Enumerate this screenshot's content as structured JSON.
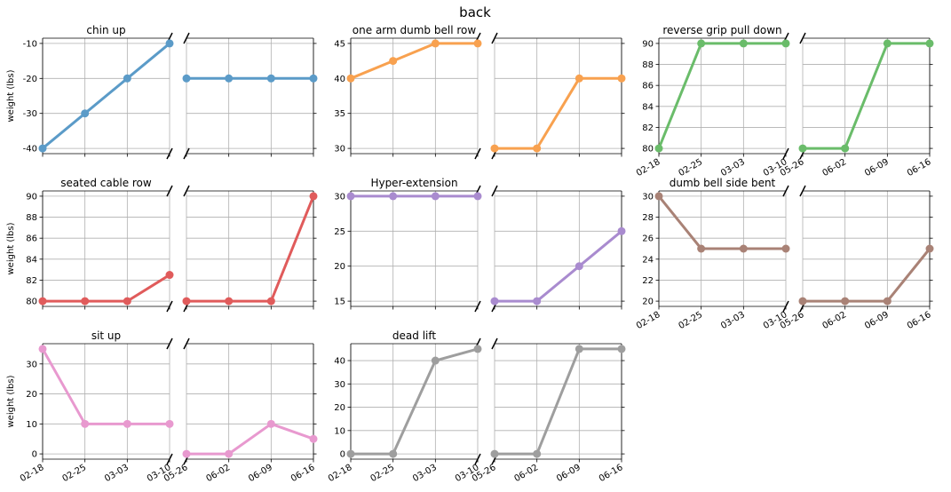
{
  "figure": {
    "suptitle": "back"
  },
  "chart_data": [
    {
      "type": "line",
      "title": "chin up",
      "ylabel": "weight (lbs)",
      "color": "#5b9bc8",
      "x": [
        "02-18",
        "02-25",
        "03-03",
        "03-10",
        "05-26",
        "06-02",
        "06-09",
        "06-16"
      ],
      "values": [
        -40,
        -30,
        -20,
        -10,
        -20,
        -20,
        -20,
        -20
      ],
      "ylim": [
        -41.5,
        -8.5
      ],
      "yticks": [
        -40,
        -30,
        -20,
        -10
      ],
      "show_xticklabels": false
    },
    {
      "type": "line",
      "title": "one arm dumb bell row",
      "ylabel": "",
      "color": "#f8a14f",
      "x": [
        "02-18",
        "02-25",
        "03-03",
        "03-10",
        "05-26",
        "06-02",
        "06-09",
        "06-16"
      ],
      "values": [
        40,
        42.5,
        45,
        45,
        30,
        30,
        40,
        40
      ],
      "ylim": [
        29.25,
        45.75
      ],
      "yticks": [
        30,
        35,
        40,
        45
      ],
      "show_xticklabels": false
    },
    {
      "type": "line",
      "title": "reverse grip pull down",
      "ylabel": "",
      "color": "#6abc6a",
      "x": [
        "02-18",
        "02-25",
        "03-03",
        "03-10",
        "05-26",
        "06-02",
        "06-09",
        "06-16"
      ],
      "values": [
        80,
        90,
        90,
        90,
        80,
        80,
        90,
        90
      ],
      "ylim": [
        79.5,
        90.5
      ],
      "yticks": [
        80,
        82,
        84,
        86,
        88,
        90
      ],
      "show_xticklabels": true
    },
    {
      "type": "line",
      "title": "seated cable row",
      "ylabel": "weight (lbs)",
      "color": "#e05b5b",
      "x": [
        "02-18",
        "02-25",
        "03-03",
        "03-10",
        "05-26",
        "06-02",
        "06-09",
        "06-16"
      ],
      "values": [
        80,
        80,
        80,
        82.5,
        80,
        80,
        80,
        90
      ],
      "ylim": [
        79.5,
        90.5
      ],
      "yticks": [
        80,
        82,
        84,
        86,
        88,
        90
      ],
      "show_xticklabels": false
    },
    {
      "type": "line",
      "title": "Hyper-extension",
      "ylabel": "",
      "color": "#a98bcf",
      "x": [
        "02-18",
        "02-25",
        "03-03",
        "03-10",
        "05-26",
        "06-02",
        "06-09",
        "06-16"
      ],
      "values": [
        30,
        30,
        30,
        30,
        15,
        15,
        20,
        25
      ],
      "ylim": [
        14.25,
        30.75
      ],
      "yticks": [
        15,
        20,
        25,
        30
      ],
      "show_xticklabels": false
    },
    {
      "type": "line",
      "title": "dumb bell side bent",
      "ylabel": "",
      "color": "#a98276",
      "x": [
        "02-18",
        "02-25",
        "03-03",
        "03-10",
        "05-26",
        "06-02",
        "06-09",
        "06-16"
      ],
      "values": [
        30,
        25,
        25,
        25,
        20,
        20,
        20,
        25
      ],
      "ylim": [
        19.5,
        30.5
      ],
      "yticks": [
        20,
        22,
        24,
        26,
        28,
        30
      ],
      "show_xticklabels": true
    },
    {
      "type": "line",
      "title": "sit up",
      "ylabel": "weight (lbs)",
      "color": "#e899cf",
      "x": [
        "02-18",
        "02-25",
        "03-03",
        "03-10",
        "05-26",
        "06-02",
        "06-09",
        "06-16"
      ],
      "values": [
        35,
        10,
        10,
        10,
        0,
        0,
        10,
        5
      ],
      "ylim": [
        -1.75,
        36.75
      ],
      "yticks": [
        0,
        10,
        20,
        30
      ],
      "show_xticklabels": true
    },
    {
      "type": "line",
      "title": "dead lift",
      "ylabel": "",
      "color": "#9e9e9e",
      "x": [
        "02-18",
        "02-25",
        "03-03",
        "03-10",
        "05-26",
        "06-02",
        "06-09",
        "06-16"
      ],
      "values": [
        0,
        0,
        40,
        45,
        0,
        0,
        45,
        45
      ],
      "ylim": [
        -2.25,
        47.25
      ],
      "yticks": [
        0,
        10,
        20,
        30,
        40
      ],
      "show_xticklabels": true
    }
  ]
}
